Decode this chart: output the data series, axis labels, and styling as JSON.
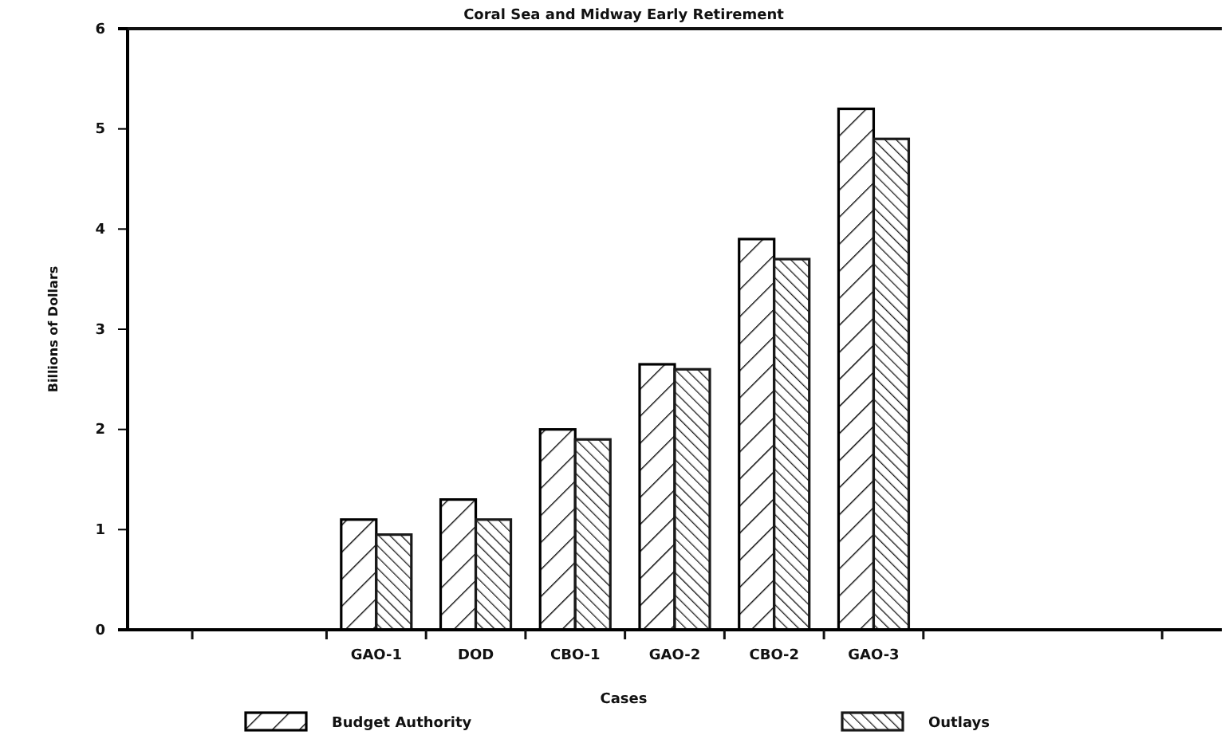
{
  "chart_data": {
    "type": "bar",
    "title": "Coral Sea and Midway Early Retirement",
    "xlabel": "Cases",
    "ylabel": "Billions of Dollars",
    "categories": [
      null,
      null,
      "GAO-1",
      "DOD",
      "CBO-1",
      "GAO-2",
      "CBO-2",
      "GAO-3",
      null,
      null,
      null
    ],
    "series": [
      {
        "name": "Budget Authority",
        "color": "#000000",
        "values": [
          null,
          null,
          1.1,
          1.3,
          2.0,
          2.65,
          3.9,
          5.2,
          null,
          null,
          null
        ]
      },
      {
        "name": "Outlays",
        "color": "#1a1a1a",
        "values": [
          null,
          null,
          0.95,
          1.1,
          1.9,
          2.6,
          3.7,
          4.9,
          null,
          null,
          null
        ]
      }
    ],
    "ylim": [
      0,
      6
    ],
    "yticks": [
      0,
      1,
      2,
      3,
      4,
      5,
      6
    ],
    "grid": false,
    "legend": "bottom"
  }
}
